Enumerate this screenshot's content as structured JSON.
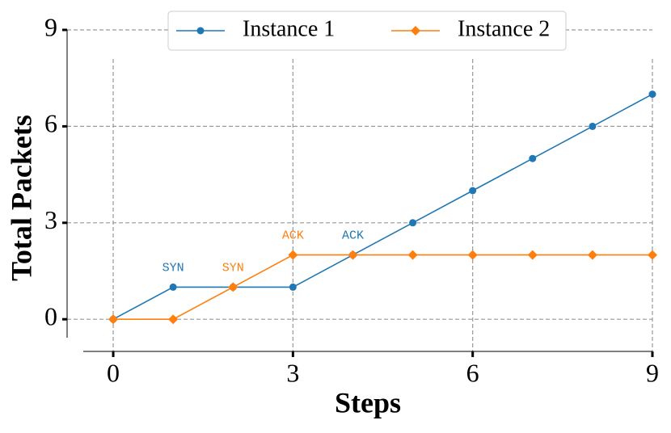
{
  "chart_data": {
    "type": "line",
    "xlabel": "Steps",
    "ylabel": "Total Packets",
    "x": [
      0,
      1,
      2,
      3,
      4,
      5,
      6,
      7,
      8,
      9
    ],
    "series": [
      {
        "name": "Instance 1",
        "color": "#1f77b4",
        "marker": "circle",
        "values": [
          0,
          1,
          1,
          1,
          2,
          3,
          4,
          5,
          6,
          7
        ]
      },
      {
        "name": "Instance 2",
        "color": "#ff7f0e",
        "marker": "diamond",
        "values": [
          0,
          0,
          1,
          2,
          2,
          2,
          2,
          2,
          2,
          2
        ]
      }
    ],
    "annotations": [
      {
        "text": "SYN",
        "series": 0,
        "x": 1
      },
      {
        "text": "SYN",
        "series": 1,
        "x": 2
      },
      {
        "text": "ACK",
        "series": 1,
        "x": 3
      },
      {
        "text": "ACK",
        "series": 0,
        "x": 4
      }
    ],
    "xlim": [
      -0.5,
      9
    ],
    "ylim": [
      -1,
      9
    ],
    "xticks": [
      0,
      3,
      6,
      9
    ],
    "yticks": [
      0,
      3,
      6,
      9
    ],
    "grid": true,
    "legend": "top"
  }
}
